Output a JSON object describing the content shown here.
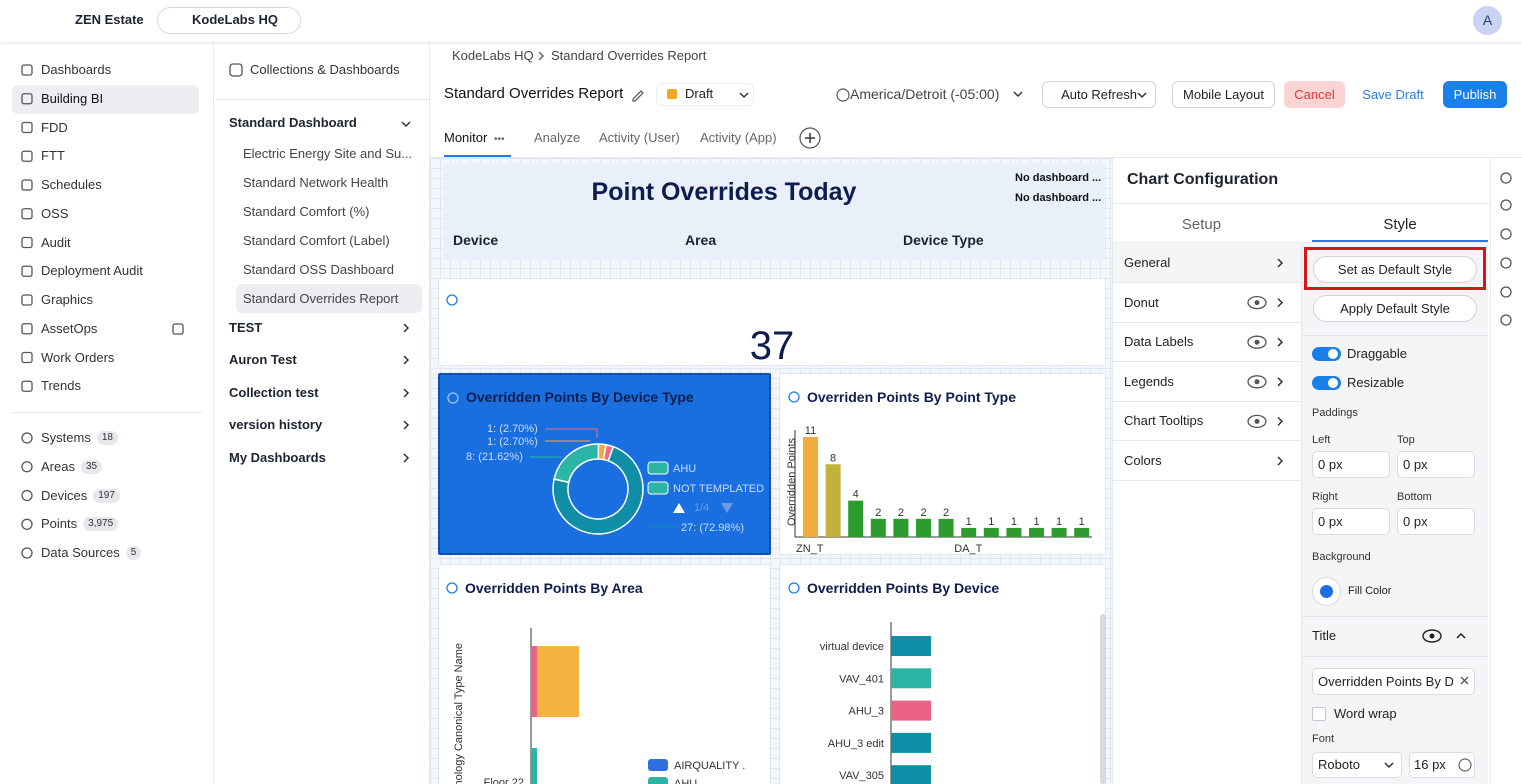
{
  "topbar": {
    "app": "ZEN Estate",
    "site": "KodeLabs HQ",
    "avatar": "A"
  },
  "nav": {
    "items": [
      "Dashboards",
      "Building BI",
      "FDD",
      "FTT",
      "Schedules",
      "OSS",
      "Audit",
      "Deployment Audit",
      "Graphics",
      "AssetOps",
      "Work Orders",
      "Trends"
    ],
    "counts": [
      {
        "label": "Systems",
        "count": "18"
      },
      {
        "label": "Areas",
        "count": "35"
      },
      {
        "label": "Devices",
        "count": "197"
      },
      {
        "label": "Points",
        "count": "3,975"
      },
      {
        "label": "Data Sources",
        "count": "5"
      }
    ]
  },
  "collections": {
    "header": "Collections & Dashboards",
    "groups": [
      {
        "name": "Standard Dashboard",
        "items": [
          "Electric Energy Site and Su...",
          "Standard Network Health",
          "Standard Comfort (%)",
          "Standard Comfort (Label)",
          "Standard OSS Dashboard",
          "Standard Overrides Report"
        ]
      },
      {
        "name": "TEST"
      },
      {
        "name": "Auron Test"
      },
      {
        "name": "Collection test"
      },
      {
        "name": "version history"
      },
      {
        "name": "My Dashboards"
      }
    ]
  },
  "breadcrumb": [
    "KodeLabs HQ",
    "Standard Overrides Report"
  ],
  "toolbar": {
    "title": "Standard Overrides Report",
    "status": "Draft",
    "timezone": "America/Detroit (-05:00)",
    "auto_refresh": "Auto Refresh",
    "mobile_layout": "Mobile Layout",
    "cancel": "Cancel",
    "save_draft": "Save Draft",
    "publish": "Publish"
  },
  "tabs": [
    "Monitor",
    "Analyze",
    "Activity (User)",
    "Activity (App)"
  ],
  "dashboard": {
    "title": "Point Overrides Today",
    "notes": [
      "No dashboard ...",
      "No dashboard ..."
    ],
    "filters": [
      "Device",
      "Area",
      "Device Type"
    ],
    "kpi": 37,
    "charts": [
      {
        "type": "pie",
        "title": "Overridden Points By Device Type",
        "values": [
          1,
          1,
          8,
          27
        ],
        "value_labels": [
          "1:  (2.70%)",
          "1:  (2.70%)",
          "8:  (21.62%)",
          "27:  (72.98%)"
        ],
        "colors": [
          "#ef6b8c",
          "#f5a83a",
          "#2bb5a5",
          "#0f8ea6"
        ],
        "legend": [
          "AHU",
          "NOT TEMPLATED"
        ],
        "legend_colors": [
          "#2bb5a5",
          "#2bb5a5"
        ],
        "legend_page": "1/4"
      },
      {
        "type": "bar",
        "title": "Overriden Points By Point Type",
        "y_label": "Overridden Points",
        "categories": [
          "ZN_T",
          null,
          null,
          null,
          null,
          null,
          null,
          "DA_T",
          null,
          null,
          null,
          null,
          null
        ],
        "values": [
          11,
          8,
          4,
          2,
          2,
          2,
          2,
          1,
          1,
          1,
          1,
          1,
          1
        ],
        "colors": [
          "#f0ad3c",
          "#c0b23a",
          "#2e9b2e",
          "#2e9b2e",
          "#2e9b2e",
          "#2e9b2e",
          "#2e9b2e",
          "#2e9b2e",
          "#2e9b2e",
          "#2e9b2e",
          "#2e9b2e",
          "#2e9b2e",
          "#2e9b2e"
        ]
      },
      {
        "type": "hbar-stacked",
        "title": "Overridden Points By Area",
        "y_label": "Technology Canonical Type Name",
        "categories": [
          null,
          "Floor 22"
        ],
        "series": [
          {
            "color": "#ea6384",
            "values": [
              1,
              null
            ]
          },
          {
            "color": "#f5b342",
            "values": [
              7,
              null
            ]
          },
          {
            "name": "AIRQUALITY .",
            "color": "#2f6fe0",
            "values": [
              null,
              null
            ]
          },
          {
            "name": "AHU",
            "color": "#2bb5a5",
            "values": [
              null,
              1
            ]
          }
        ]
      },
      {
        "type": "hbar",
        "title": "Overridden Points By Device",
        "categories": [
          "virtual device",
          "VAV_401",
          "AHU_3",
          "AHU_3 edit",
          "VAV_305"
        ],
        "values": [
          1,
          1,
          1,
          1,
          1
        ],
        "colors": [
          "#0f8ea6",
          "#2bb5a5",
          "#ea6384",
          "#0f8ea6",
          "#0f8ea6"
        ]
      }
    ]
  },
  "config": {
    "title": "Chart Configuration",
    "tabs": [
      "Setup",
      "Style"
    ],
    "sections": [
      "General",
      "Donut",
      "Data Labels",
      "Legends",
      "Chart Tooltips",
      "Colors"
    ],
    "set_default": "Set as Default Style",
    "apply_default": "Apply Default Style",
    "toggles": [
      "Draggable",
      "Resizable"
    ],
    "paddings": "Paddings",
    "padding_fields": [
      {
        "label": "Left",
        "value": "0 px"
      },
      {
        "label": "Top",
        "value": "0 px"
      },
      {
        "label": "Right",
        "value": "0 px"
      },
      {
        "label": "Bottom",
        "value": "0 px"
      }
    ],
    "background": "Background",
    "fill_color": "Fill Color",
    "title_section": "Title",
    "title_input": "Overridden Points By D",
    "word_wrap": "Word wrap",
    "font": "Font",
    "font_family": "Roboto",
    "font_size": "16 px"
  }
}
